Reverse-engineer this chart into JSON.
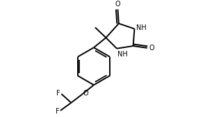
{
  "background": "#ffffff",
  "line_color": "black",
  "line_width": 1.4,
  "font_size": 7.0,
  "xlim": [
    0,
    10
  ],
  "ylim": [
    0,
    5.6
  ],
  "figsize": [
    3.18,
    1.68
  ],
  "dpi": 100
}
